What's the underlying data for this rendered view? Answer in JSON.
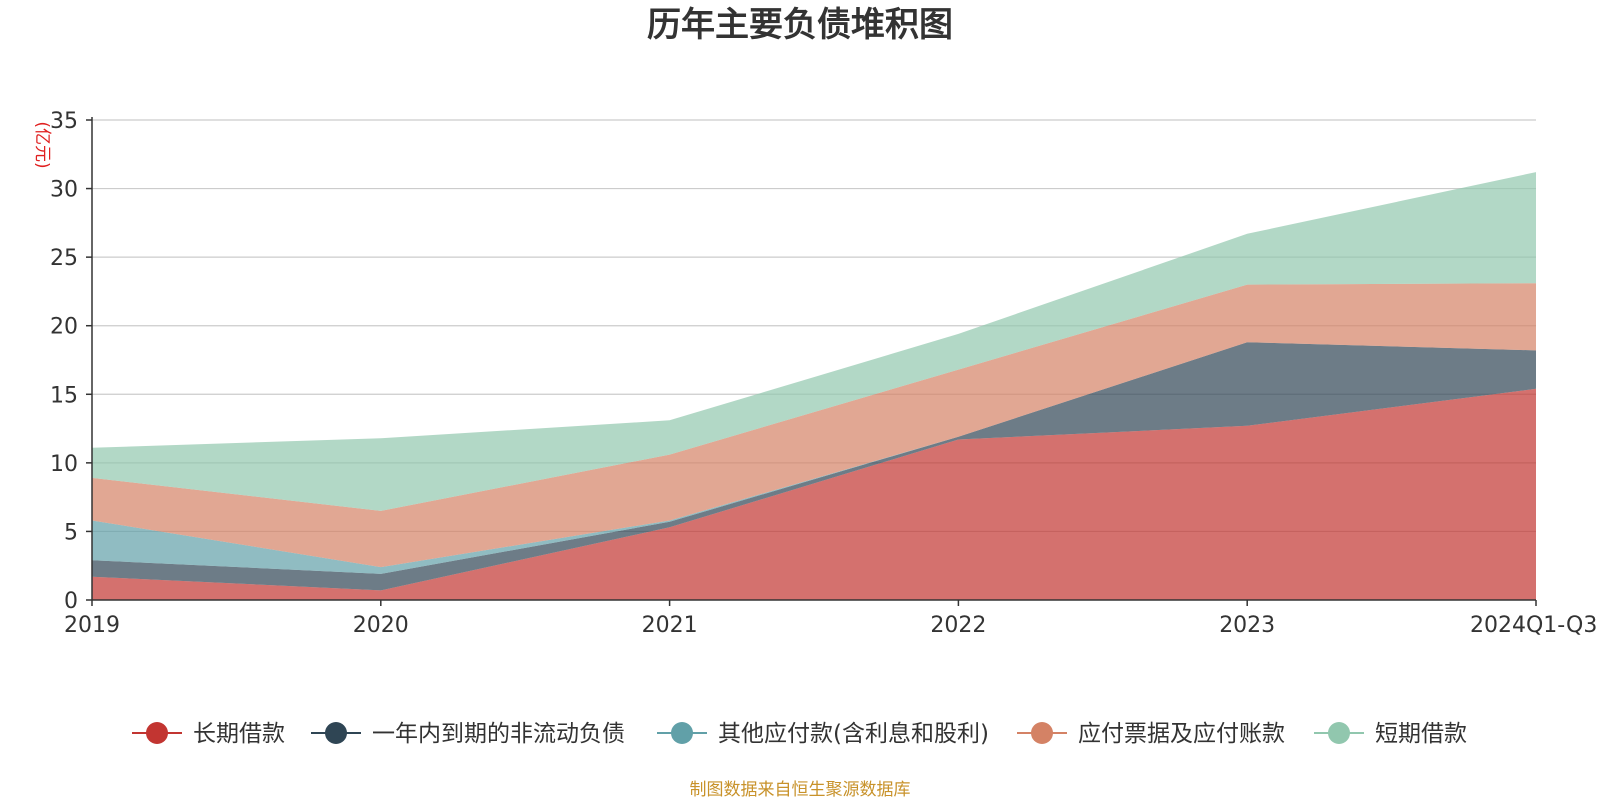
{
  "chart_data": {
    "type": "area",
    "stacked": true,
    "title": "历年主要负债堆积图",
    "unit_label": "(亿元)",
    "categories": [
      "2019",
      "2020",
      "2021",
      "2022",
      "2023",
      "2024Q1-Q3"
    ],
    "ylim": [
      0,
      35
    ],
    "yticks": [
      "0",
      "5",
      "10",
      "15",
      "20",
      "25",
      "30",
      "35"
    ],
    "grid": true,
    "legend_position": "bottom",
    "series": [
      {
        "name": "长期借款",
        "color": "#c23531",
        "values": [
          1.7,
          0.7,
          5.3,
          11.7,
          12.7,
          15.4
        ]
      },
      {
        "name": "一年内到期的非流动负债",
        "color": "#2f4554",
        "values": [
          1.2,
          1.2,
          0.4,
          0.2,
          6.1,
          2.8
        ]
      },
      {
        "name": "其他应付款(含利息和股利)",
        "color": "#61a0a8",
        "values": [
          2.9,
          0.5,
          0.1,
          0.0,
          0.0,
          0.0
        ]
      },
      {
        "name": "应付票据及应付账款",
        "color": "#d48265",
        "values": [
          3.1,
          4.1,
          4.8,
          4.9,
          4.2,
          4.9
        ]
      },
      {
        "name": "短期借款",
        "color": "#91c7ae",
        "values": [
          2.2,
          5.3,
          2.5,
          2.6,
          3.7,
          8.1
        ]
      }
    ]
  },
  "source_note": "制图数据来自恒生聚源数据库"
}
